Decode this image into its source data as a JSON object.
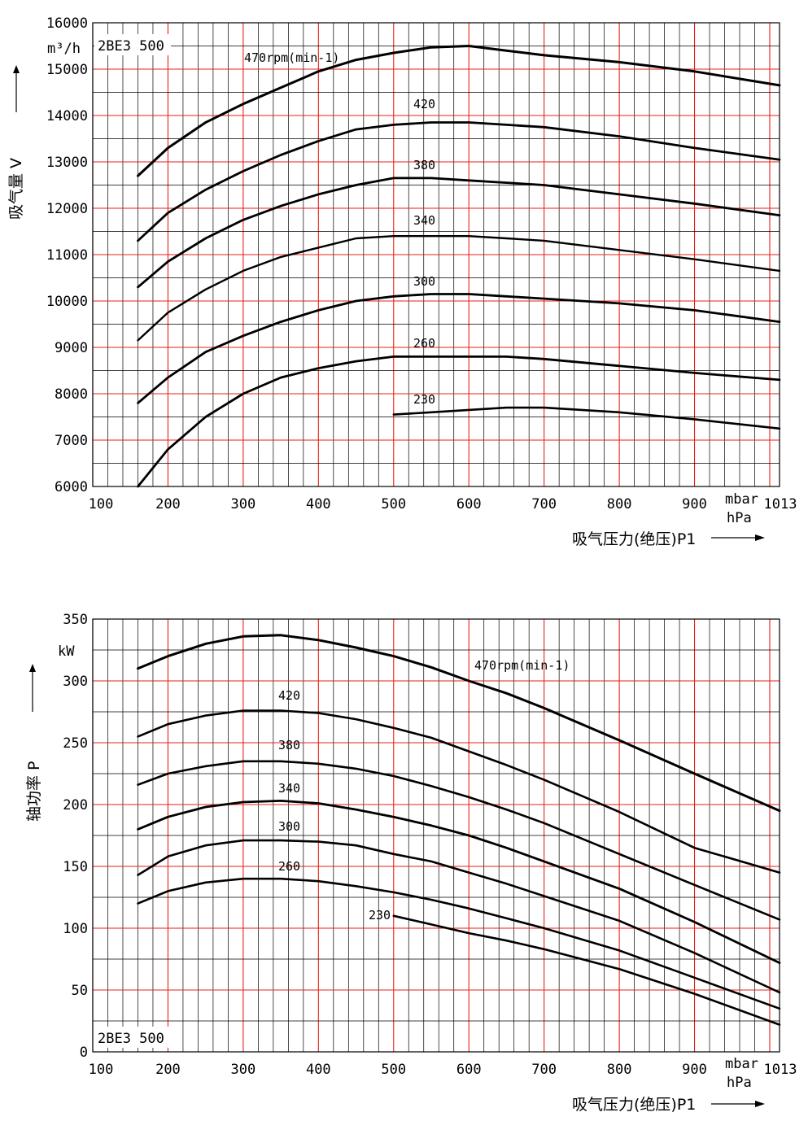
{
  "chart_data": [
    {
      "type": "line",
      "model": "2BE3 500",
      "xlabel": "吸气压力(绝压)P1",
      "x_unit": "mbar\nhPa",
      "ylabel": "吸气量 V",
      "y_unit": "m³/h",
      "xlim": [
        100,
        1013
      ],
      "ylim": [
        6000,
        16000
      ],
      "x_ticks": [
        "100",
        "200",
        "300",
        "400",
        "500",
        "600",
        "700",
        "800",
        "900",
        "1013"
      ],
      "y_ticks": [
        "6000",
        "7000",
        "8000",
        "9000",
        "10000",
        "11000",
        "12000",
        "13000",
        "14000",
        "15000",
        "16000"
      ],
      "grid": true,
      "series": [
        {
          "name": "470rpm(min-1)",
          "x": [
            160,
            200,
            250,
            300,
            350,
            400,
            450,
            500,
            550,
            600,
            650,
            700,
            800,
            900,
            1013
          ],
          "y": [
            12700,
            13300,
            13850,
            14250,
            14600,
            14950,
            15200,
            15350,
            15470,
            15500,
            15400,
            15300,
            15150,
            14950,
            14650
          ]
        },
        {
          "name": "420",
          "x": [
            160,
            200,
            250,
            300,
            350,
            400,
            450,
            500,
            550,
            600,
            650,
            700,
            800,
            900,
            1013
          ],
          "y": [
            11300,
            11900,
            12400,
            12800,
            13150,
            13450,
            13700,
            13800,
            13850,
            13850,
            13800,
            13750,
            13550,
            13300,
            13050
          ]
        },
        {
          "name": "380",
          "x": [
            160,
            200,
            250,
            300,
            350,
            400,
            450,
            500,
            550,
            600,
            650,
            700,
            800,
            900,
            1013
          ],
          "y": [
            10300,
            10850,
            11350,
            11750,
            12050,
            12300,
            12500,
            12650,
            12650,
            12600,
            12550,
            12500,
            12300,
            12100,
            11850
          ]
        },
        {
          "name": "340",
          "x": [
            160,
            200,
            250,
            300,
            350,
            400,
            450,
            500,
            550,
            600,
            650,
            700,
            800,
            900,
            1013
          ],
          "y": [
            9150,
            9750,
            10250,
            10650,
            10950,
            11150,
            11350,
            11400,
            11400,
            11400,
            11350,
            11300,
            11100,
            10900,
            10650
          ]
        },
        {
          "name": "300",
          "x": [
            160,
            200,
            250,
            300,
            350,
            400,
            450,
            500,
            550,
            600,
            650,
            700,
            800,
            900,
            1013
          ],
          "y": [
            7800,
            8350,
            8900,
            9250,
            9550,
            9800,
            10000,
            10100,
            10150,
            10150,
            10100,
            10050,
            9950,
            9800,
            9550
          ]
        },
        {
          "name": "260",
          "x": [
            160,
            200,
            250,
            300,
            350,
            400,
            450,
            500,
            550,
            600,
            650,
            700,
            800,
            900,
            1013
          ],
          "y": [
            6000,
            6800,
            7500,
            8000,
            8350,
            8550,
            8700,
            8800,
            8800,
            8800,
            8800,
            8750,
            8600,
            8450,
            8300
          ]
        },
        {
          "name": "230",
          "x": [
            500,
            550,
            600,
            650,
            700,
            800,
            900,
            1013
          ],
          "y": [
            7550,
            7600,
            7650,
            7700,
            7700,
            7600,
            7450,
            7250
          ]
        }
      ]
    },
    {
      "type": "line",
      "model": "2BE3 500",
      "xlabel": "吸气压力(绝压)P1",
      "x_unit": "mbar\nhPa",
      "ylabel": "轴功率 P",
      "y_unit": "kW",
      "xlim": [
        100,
        1013
      ],
      "ylim": [
        0,
        350
      ],
      "x_ticks": [
        "100",
        "200",
        "300",
        "400",
        "500",
        "600",
        "700",
        "800",
        "900",
        "1013"
      ],
      "y_ticks": [
        "0",
        "50",
        "100",
        "150",
        "200",
        "250",
        "300",
        "350"
      ],
      "grid": true,
      "series": [
        {
          "name": "470rpm(min-1)",
          "x": [
            160,
            200,
            250,
            300,
            350,
            400,
            450,
            500,
            550,
            600,
            650,
            700,
            800,
            900,
            1013
          ],
          "y": [
            310,
            320,
            330,
            336,
            337,
            333,
            327,
            320,
            311,
            300,
            290,
            278,
            252,
            225,
            195
          ]
        },
        {
          "name": "420",
          "x": [
            160,
            200,
            250,
            300,
            350,
            400,
            450,
            500,
            550,
            600,
            650,
            700,
            800,
            900,
            1013
          ],
          "y": [
            255,
            265,
            272,
            276,
            276,
            274,
            269,
            262,
            254,
            243,
            232,
            220,
            194,
            165,
            145
          ]
        },
        {
          "name": "380",
          "x": [
            160,
            200,
            250,
            300,
            350,
            400,
            450,
            500,
            550,
            600,
            650,
            700,
            800,
            900,
            1013
          ],
          "y": [
            216,
            225,
            231,
            235,
            235,
            233,
            229,
            223,
            215,
            206,
            196,
            185,
            160,
            135,
            107
          ]
        },
        {
          "name": "340",
          "x": [
            160,
            200,
            250,
            300,
            350,
            400,
            450,
            500,
            550,
            600,
            650,
            700,
            800,
            900,
            1013
          ],
          "y": [
            180,
            190,
            198,
            202,
            203,
            201,
            196,
            190,
            183,
            175,
            165,
            154,
            132,
            105,
            72
          ]
        },
        {
          "name": "300",
          "x": [
            160,
            200,
            250,
            300,
            350,
            400,
            450,
            500,
            550,
            600,
            650,
            700,
            800,
            900,
            1013
          ],
          "y": [
            143,
            158,
            167,
            171,
            171,
            170,
            167,
            160,
            154,
            145,
            136,
            126,
            106,
            80,
            48
          ]
        },
        {
          "name": "260",
          "x": [
            160,
            200,
            250,
            300,
            350,
            400,
            450,
            500,
            550,
            600,
            650,
            700,
            800,
            900,
            1013
          ],
          "y": [
            120,
            130,
            137,
            140,
            140,
            138,
            134,
            129,
            123,
            116,
            108,
            100,
            82,
            60,
            35
          ]
        },
        {
          "name": "230",
          "x": [
            500,
            550,
            600,
            650,
            700,
            800,
            900,
            1013
          ],
          "y": [
            110,
            103,
            96,
            90,
            83,
            67,
            47,
            22
          ]
        }
      ]
    }
  ]
}
